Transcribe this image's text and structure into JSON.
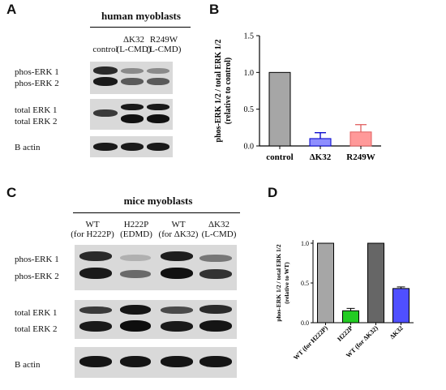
{
  "panelA": {
    "letter": "A",
    "group_title": "human myoblasts",
    "lanes": [
      {
        "line1": "",
        "line2": "control"
      },
      {
        "line1": "ΔK32",
        "line2": "(L-CMD)"
      },
      {
        "line1": "R249W",
        "line2": "(L-CMD)"
      }
    ],
    "band_labels": [
      "phos-ERK 1",
      "phos-ERK 2",
      "total ERK 1",
      "total ERK 2",
      "B actin"
    ]
  },
  "panelC": {
    "letter": "C",
    "group_title": "mice myoblasts",
    "lanes": [
      {
        "line1": "WT",
        "line2": "(for H222P)"
      },
      {
        "line1": "H222P",
        "line2": "(EDMD)"
      },
      {
        "line1": "WT",
        "line2": "(for ΔK32)"
      },
      {
        "line1": "ΔK32",
        "line2": "(L-CMD)"
      }
    ],
    "band_labels": [
      "phos-ERK 1",
      "phos-ERK 2",
      "total ERK 1",
      "total ERK 2",
      "B actin"
    ]
  },
  "panelB": {
    "letter": "B"
  },
  "panelD": {
    "letter": "D"
  },
  "chart_data": [
    {
      "type": "bar",
      "panel": "B",
      "categories": [
        "control",
        "ΔK32",
        "R249W"
      ],
      "values": [
        1.0,
        0.1,
        0.19
      ],
      "errors": [
        0,
        0.08,
        0.1
      ],
      "colors": [
        "#a6a6a6",
        "#8e8eff",
        "#ff9999"
      ],
      "edge_colors": [
        "#000000",
        "#0000cc",
        "#e06060"
      ],
      "ylabel": "phos-ERK 1/2 / total ERK 1/2 (relative to control)",
      "ylim": [
        0,
        1.5
      ],
      "yticks": [
        "0.0",
        "0.5",
        "1.0",
        "1.5"
      ],
      "xlabel": "",
      "grid": false
    },
    {
      "type": "bar",
      "panel": "D",
      "categories": [
        "WT (for H222P)",
        "H222P",
        "WT (for ΔK32)",
        "ΔK32"
      ],
      "values": [
        1.0,
        0.15,
        1.0,
        0.43
      ],
      "errors": [
        0,
        0.03,
        0,
        0.02
      ],
      "colors": [
        "#a6a6a6",
        "#22cc22",
        "#666666",
        "#4f4fff"
      ],
      "edge_colors": [
        "#000000",
        "#000000",
        "#000000",
        "#000000"
      ],
      "ylabel": "phos-ERK 1/2 / total ERK 1/2 (relative to WT)",
      "ylim": [
        0,
        1.0
      ],
      "yticks": [
        "0.0",
        "0.5",
        "1.0"
      ],
      "xlabel": "",
      "grid": false
    }
  ]
}
